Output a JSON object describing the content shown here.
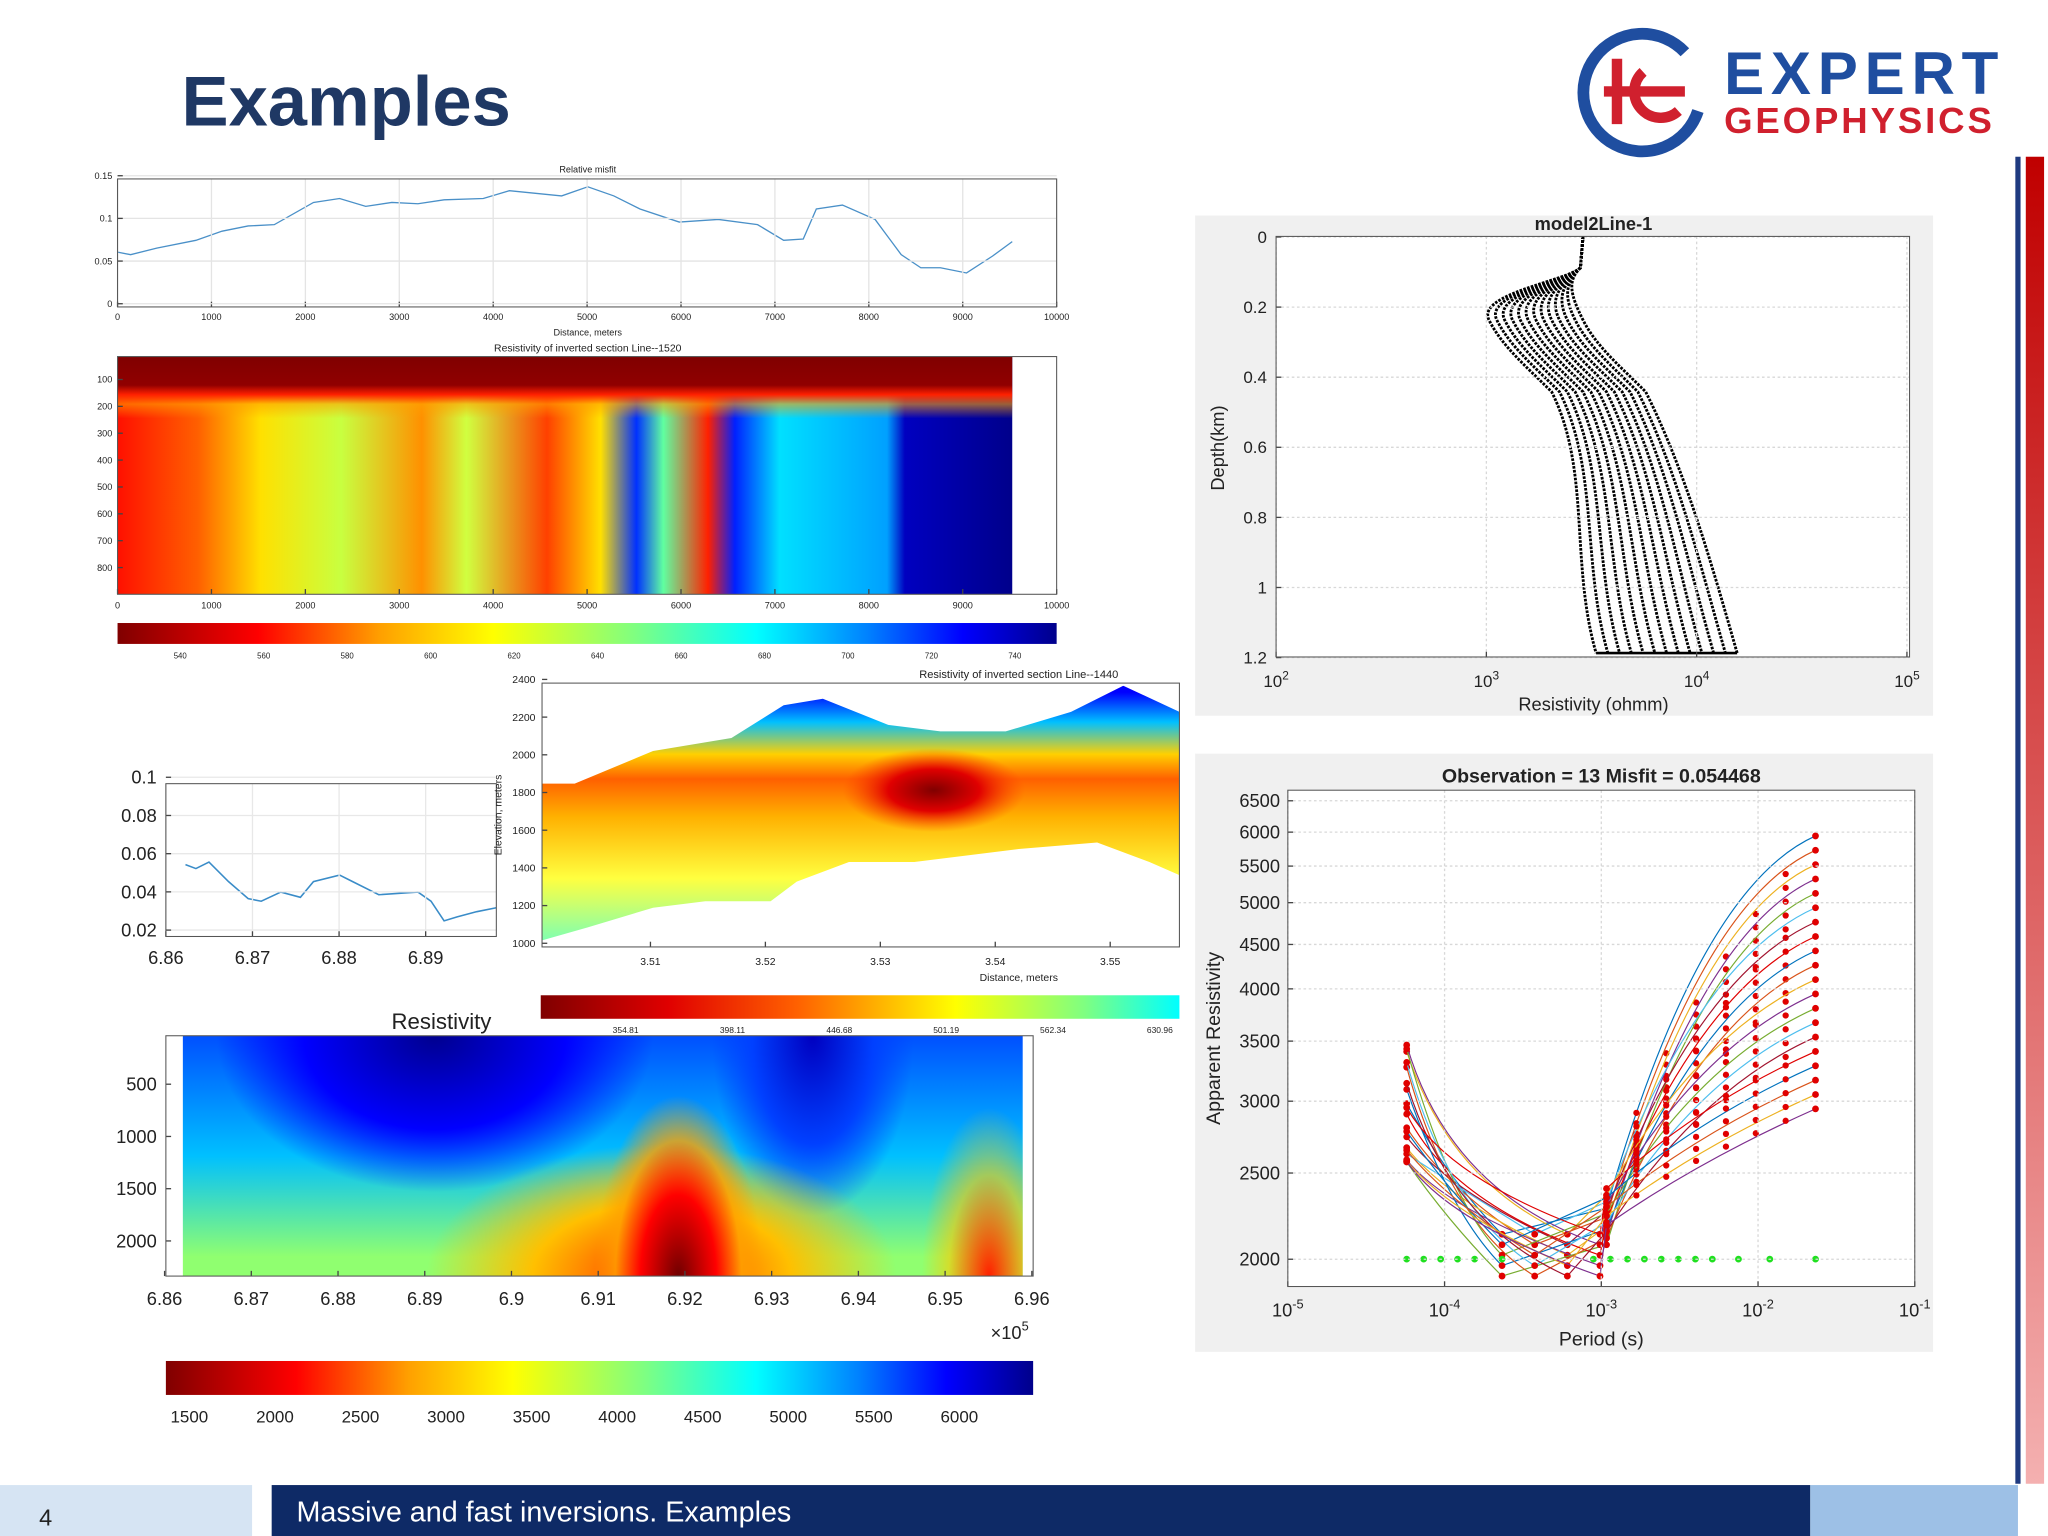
{
  "header": {
    "title": "Examples",
    "logo": {
      "line1": "EXPERT",
      "line2": "GEOPHYSICS"
    }
  },
  "panels": [
    {
      "title": "Relative misfit",
      "xlabel": "Distance, meters",
      "xticks": [
        "0",
        "1000",
        "2000",
        "3000",
        "4000",
        "5000",
        "6000",
        "7000",
        "8000",
        "9000",
        "10000"
      ],
      "yticks": [
        "0",
        "0.05",
        "0.1",
        "0.15"
      ]
    },
    {
      "title": "Resistivity of inverted section Line--1520",
      "xticks": [
        "0",
        "1000",
        "2000",
        "3000",
        "4000",
        "5000",
        "6000",
        "7000",
        "8000",
        "9000",
        "10000"
      ],
      "yticks": [
        "100",
        "200",
        "300",
        "400",
        "500",
        "600",
        "700",
        "800"
      ],
      "colorbar": [
        "540",
        "560",
        "580",
        "600",
        "620",
        "640",
        "660",
        "680",
        "700",
        "720",
        "740"
      ]
    },
    {
      "xticks": [
        "6.86",
        "6.87",
        "6.88",
        "6.89"
      ],
      "yticks": [
        "0.02",
        "0.04",
        "0.06",
        "0.08",
        "0.1"
      ]
    },
    {
      "title": "Resistivity of inverted section Line--1440",
      "xlabel": "Distance, meters",
      "ylabel": "Elevation, meters",
      "xticks": [
        "3.51",
        "3.52",
        "3.53",
        "3.54",
        "3.55"
      ],
      "yticks": [
        "1000",
        "1200",
        "1400",
        "1600",
        "1800",
        "2000",
        "2200",
        "2400"
      ],
      "colorbar": [
        "354.81",
        "398.11",
        "446.68",
        "501.19",
        "562.34",
        "630.96"
      ]
    },
    {
      "title": "Resistivity",
      "xticks": [
        "6.86",
        "6.87",
        "6.88",
        "6.89",
        "6.9",
        "6.91",
        "6.92",
        "6.93",
        "6.94",
        "6.95",
        "6.96"
      ],
      "yticks": [
        "500",
        "1000",
        "1500",
        "2000"
      ],
      "multiplier": {
        "base": "×10",
        "exp": "5"
      },
      "colorbar": [
        "1500",
        "2000",
        "2500",
        "3000",
        "3500",
        "4000",
        "4500",
        "5000",
        "5500",
        "6000"
      ]
    },
    {
      "title": "model2Line-1",
      "xlabel": "Resistivity (ohmm)",
      "ylabel": "Depth(km)",
      "xticks": [
        {
          "base": "10",
          "exp": "2"
        },
        {
          "base": "10",
          "exp": "3"
        },
        {
          "base": "10",
          "exp": "4"
        },
        {
          "base": "10",
          "exp": "5"
        }
      ],
      "yticks": [
        "0",
        "0.2",
        "0.4",
        "0.6",
        "0.8",
        "1",
        "1.2"
      ]
    },
    {
      "title": "Observation = 13 Misfit = 0.054468",
      "xlabel": "Period (s)",
      "ylabel": "Apparent Resistivity",
      "xticks": [
        {
          "base": "10",
          "exp": "-5"
        },
        {
          "base": "10",
          "exp": "-4"
        },
        {
          "base": "10",
          "exp": "-3"
        },
        {
          "base": "10",
          "exp": "-2"
        },
        {
          "base": "10",
          "exp": "-1"
        }
      ],
      "yticks": [
        "2000",
        "2500",
        "3000",
        "3500",
        "4000",
        "4500",
        "5000",
        "5500",
        "6000",
        "6500"
      ]
    }
  ],
  "footer": {
    "page": "4",
    "text": "Massive and fast inversions. Examples"
  }
}
